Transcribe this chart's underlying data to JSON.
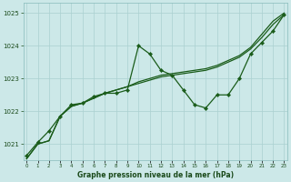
{
  "title": "Graphe pression niveau de la mer (hPa)",
  "xlabel_ticks": [
    0,
    1,
    2,
    3,
    4,
    5,
    6,
    7,
    8,
    9,
    10,
    11,
    12,
    13,
    14,
    15,
    16,
    17,
    18,
    19,
    20,
    21,
    22,
    23
  ],
  "ylim": [
    1020.5,
    1025.3
  ],
  "yticks": [
    1021,
    1022,
    1023,
    1024,
    1025
  ],
  "background_color": "#cce8e8",
  "grid_color": "#aad0d0",
  "line_color": "#1a5c1a",
  "series_zigzag": [
    1020.65,
    1021.05,
    1021.4,
    1021.85,
    1022.2,
    1022.25,
    1022.45,
    1022.55,
    1022.55,
    1022.65,
    1024.0,
    1023.75,
    1023.25,
    1023.1,
    1022.65,
    1022.2,
    1022.1,
    1022.5,
    1022.5,
    1023.0,
    1023.75,
    1024.1,
    1024.45,
    1024.95
  ],
  "series_trend1": [
    1020.55,
    1021.0,
    1021.1,
    1021.85,
    1022.15,
    1022.25,
    1022.4,
    1022.55,
    1022.65,
    1022.75,
    1022.9,
    1023.0,
    1023.1,
    1023.15,
    1023.2,
    1023.25,
    1023.3,
    1023.4,
    1023.55,
    1023.7,
    1023.95,
    1024.35,
    1024.75,
    1025.0
  ],
  "series_trend2": [
    1020.55,
    1021.0,
    1021.1,
    1021.85,
    1022.15,
    1022.25,
    1022.4,
    1022.55,
    1022.65,
    1022.75,
    1022.85,
    1022.95,
    1023.05,
    1023.1,
    1023.15,
    1023.2,
    1023.25,
    1023.35,
    1023.5,
    1023.65,
    1023.9,
    1024.25,
    1024.65,
    1024.95
  ]
}
